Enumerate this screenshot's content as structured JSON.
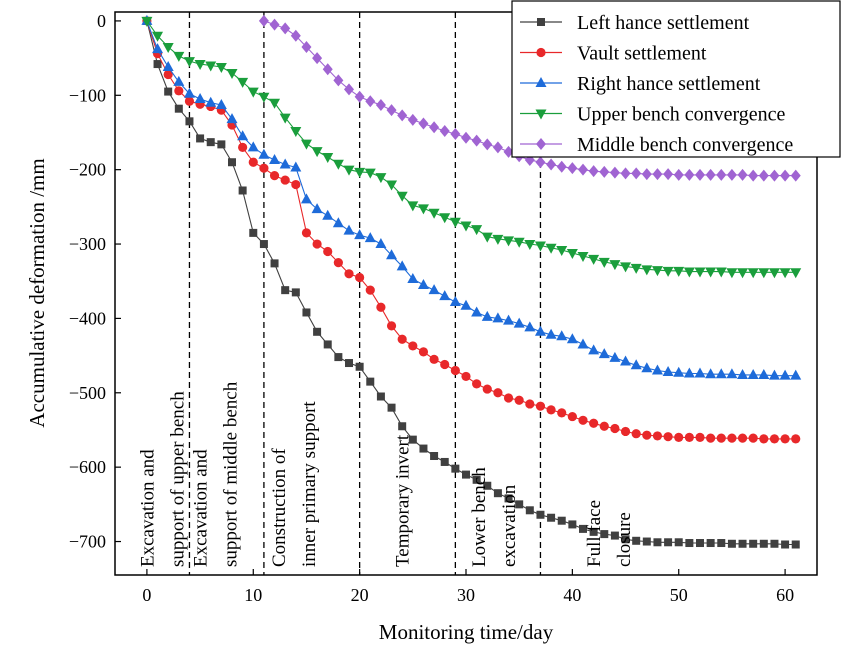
{
  "chart_data": {
    "type": "line",
    "xlabel": "Monitoring time/day",
    "ylabel": "Accumulative deformation /mm",
    "xlim": [
      -3,
      63
    ],
    "ylim": [
      -745,
      12
    ],
    "xticks": [
      0,
      10,
      20,
      30,
      40,
      50,
      60
    ],
    "yticks": [
      0,
      -100,
      -200,
      -300,
      -400,
      -500,
      -600,
      -700
    ],
    "grid": false,
    "legend_position": "top-right",
    "stage_lines": [
      4,
      11,
      20,
      29,
      37
    ],
    "stage_annotations": [
      {
        "id": "upper-bench",
        "x": 0.6,
        "lines": [
          "Excavation and",
          "support of upper bench"
        ]
      },
      {
        "id": "middle-bench",
        "x": 5.6,
        "lines": [
          "Excavation and",
          "support of middle bench"
        ]
      },
      {
        "id": "inner-support",
        "x": 13.0,
        "lines": [
          "Construction of",
          "inner primary support"
        ]
      },
      {
        "id": "temporary-invert",
        "x": 24.6,
        "lines": [
          "Temporary invert"
        ]
      },
      {
        "id": "lower-bench",
        "x": 31.8,
        "lines": [
          "Lower bench",
          "excavation"
        ]
      },
      {
        "id": "full-face",
        "x": 42.6,
        "lines": [
          "Full face",
          "closure"
        ]
      }
    ],
    "series": [
      {
        "name": "Left hance settlement",
        "color": "#404040",
        "marker": "square",
        "x": [
          0,
          1,
          2,
          3,
          4,
          5,
          6,
          7,
          8,
          9,
          10,
          11,
          12,
          13,
          14,
          15,
          16,
          17,
          18,
          19,
          20,
          21,
          22,
          23,
          24,
          25,
          26,
          27,
          28,
          29,
          30,
          31,
          32,
          33,
          34,
          35,
          36,
          37,
          38,
          39,
          40,
          41,
          42,
          43,
          44,
          45,
          46,
          47,
          48,
          49,
          50,
          51,
          52,
          53,
          54,
          55,
          56,
          57,
          58,
          59,
          60,
          61
        ],
        "y": [
          0,
          -58,
          -95,
          -118,
          -135,
          -158,
          -163,
          -166,
          -190,
          -228,
          -285,
          -300,
          -326,
          -362,
          -365,
          -392,
          -418,
          -435,
          -452,
          -460,
          -465,
          -485,
          -505,
          -520,
          -545,
          -563,
          -575,
          -585,
          -593,
          -602,
          -610,
          -617,
          -625,
          -635,
          -642,
          -650,
          -658,
          -664,
          -668,
          -672,
          -677,
          -683,
          -687,
          -690,
          -692,
          -697,
          -699,
          -700,
          -701,
          -701,
          -701,
          -702,
          -702,
          -702,
          -702,
          -703,
          -703,
          -703,
          -703,
          -703,
          -704,
          -704
        ]
      },
      {
        "name": "Vault settlement",
        "color": "#e8282a",
        "marker": "circle",
        "x": [
          0,
          1,
          2,
          3,
          4,
          5,
          6,
          7,
          8,
          9,
          10,
          11,
          12,
          13,
          14,
          15,
          16,
          17,
          18,
          19,
          20,
          21,
          22,
          23,
          24,
          25,
          26,
          27,
          28,
          29,
          30,
          31,
          32,
          33,
          34,
          35,
          36,
          37,
          38,
          39,
          40,
          41,
          42,
          43,
          44,
          45,
          46,
          47,
          48,
          49,
          50,
          51,
          52,
          53,
          54,
          55,
          56,
          57,
          58,
          59,
          60,
          61
        ],
        "y": [
          0,
          -44,
          -72,
          -94,
          -108,
          -112,
          -115,
          -120,
          -140,
          -170,
          -190,
          -198,
          -208,
          -214,
          -220,
          -285,
          -300,
          -310,
          -325,
          -340,
          -345,
          -362,
          -385,
          -410,
          -428,
          -437,
          -445,
          -455,
          -462,
          -470,
          -478,
          -488,
          -495,
          -500,
          -507,
          -510,
          -515,
          -518,
          -523,
          -527,
          -532,
          -537,
          -541,
          -545,
          -548,
          -552,
          -555,
          -557,
          -558,
          -559,
          -560,
          -560,
          -560,
          -561,
          -561,
          -561,
          -561,
          -561,
          -562,
          -562,
          -562,
          -562
        ]
      },
      {
        "name": "Right hance settlement",
        "color": "#1e6bd9",
        "marker": "triangle-up",
        "x": [
          0,
          1,
          2,
          3,
          4,
          5,
          6,
          7,
          8,
          9,
          10,
          11,
          12,
          13,
          14,
          15,
          16,
          17,
          18,
          19,
          20,
          21,
          22,
          23,
          24,
          25,
          26,
          27,
          28,
          29,
          30,
          31,
          32,
          33,
          34,
          35,
          36,
          37,
          38,
          39,
          40,
          41,
          42,
          43,
          44,
          45,
          46,
          47,
          48,
          49,
          50,
          51,
          52,
          53,
          54,
          55,
          56,
          57,
          58,
          59,
          60,
          61
        ],
        "y": [
          0,
          -38,
          -62,
          -82,
          -98,
          -105,
          -110,
          -113,
          -132,
          -155,
          -170,
          -180,
          -187,
          -193,
          -197,
          -240,
          -253,
          -262,
          -272,
          -282,
          -288,
          -292,
          -300,
          -315,
          -330,
          -347,
          -355,
          -362,
          -370,
          -378,
          -383,
          -392,
          -398,
          -400,
          -403,
          -407,
          -412,
          -418,
          -422,
          -424,
          -428,
          -435,
          -443,
          -448,
          -453,
          -458,
          -463,
          -467,
          -470,
          -472,
          -473,
          -474,
          -474,
          -475,
          -475,
          -475,
          -476,
          -476,
          -476,
          -477,
          -477,
          -477
        ]
      },
      {
        "name": "Upper bench convergence",
        "color": "#1a9e3c",
        "marker": "triangle-down",
        "x": [
          0,
          1,
          2,
          3,
          4,
          5,
          6,
          7,
          8,
          9,
          10,
          11,
          12,
          13,
          14,
          15,
          16,
          17,
          18,
          19,
          20,
          21,
          22,
          23,
          24,
          25,
          26,
          27,
          28,
          29,
          30,
          31,
          32,
          33,
          34,
          35,
          36,
          37,
          38,
          39,
          40,
          41,
          42,
          43,
          44,
          45,
          46,
          47,
          48,
          49,
          50,
          51,
          52,
          53,
          54,
          55,
          56,
          57,
          58,
          59,
          60,
          61
        ],
        "y": [
          0,
          -20,
          -35,
          -47,
          -54,
          -58,
          -60,
          -62,
          -70,
          -82,
          -95,
          -102,
          -110,
          -130,
          -148,
          -165,
          -175,
          -183,
          -192,
          -200,
          -203,
          -204,
          -210,
          -220,
          -235,
          -248,
          -252,
          -258,
          -264,
          -270,
          -275,
          -280,
          -290,
          -293,
          -295,
          -297,
          -300,
          -302,
          -305,
          -308,
          -312,
          -316,
          -320,
          -324,
          -327,
          -330,
          -332,
          -334,
          -335,
          -336,
          -336,
          -337,
          -337,
          -337,
          -337,
          -338,
          -338,
          -338,
          -338,
          -338,
          -338,
          -338
        ]
      },
      {
        "name": "Middle bench convergence",
        "color": "#a064d2",
        "marker": "diamond",
        "x": [
          11,
          12,
          13,
          14,
          15,
          16,
          17,
          18,
          19,
          20,
          21,
          22,
          23,
          24,
          25,
          26,
          27,
          28,
          29,
          30,
          31,
          32,
          33,
          34,
          35,
          36,
          37,
          38,
          39,
          40,
          41,
          42,
          43,
          44,
          45,
          46,
          47,
          48,
          49,
          50,
          51,
          52,
          53,
          54,
          55,
          56,
          57,
          58,
          59,
          60,
          61
        ],
        "y": [
          0,
          -5,
          -10,
          -20,
          -35,
          -50,
          -65,
          -80,
          -92,
          -102,
          -108,
          -113,
          -120,
          -127,
          -133,
          -138,
          -143,
          -148,
          -152,
          -157,
          -161,
          -166,
          -170,
          -176,
          -182,
          -187,
          -190,
          -193,
          -196,
          -198,
          -200,
          -202,
          -203,
          -204,
          -205,
          -205,
          -206,
          -206,
          -206,
          -207,
          -207,
          -207,
          -207,
          -207,
          -207,
          -207,
          -208,
          -208,
          -208,
          -208,
          -208
        ]
      }
    ]
  }
}
